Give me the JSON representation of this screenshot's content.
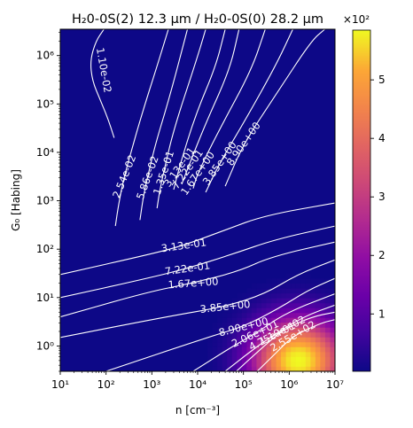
{
  "chart_data": {
    "type": "heatmap",
    "title": "H₂0-0S(2) 12.3 μm / H₂0-0S(0) 28.2 μm",
    "xlabel": "n [cm⁻³]",
    "ylabel": "G₀ [Habing]",
    "x_scale": "log",
    "y_scale": "log",
    "xlim": [
      10,
      10000000
    ],
    "ylim": [
      0.3,
      3500000
    ],
    "x_ticks": [
      {
        "value": 10,
        "label": "10¹"
      },
      {
        "value": 100,
        "label": "10²"
      },
      {
        "value": 1000,
        "label": "10³"
      },
      {
        "value": 10000,
        "label": "10⁴"
      },
      {
        "value": 100000,
        "label": "10⁵"
      },
      {
        "value": 1000000,
        "label": "10⁶"
      },
      {
        "value": 10000000,
        "label": "10⁷"
      }
    ],
    "y_ticks": [
      {
        "value": 1,
        "label": "10⁰"
      },
      {
        "value": 10,
        "label": "10¹"
      },
      {
        "value": 100,
        "label": "10²"
      },
      {
        "value": 1000,
        "label": "10³"
      },
      {
        "value": 10000,
        "label": "10⁴"
      },
      {
        "value": 100000,
        "label": "10⁵"
      },
      {
        "value": 1000000,
        "label": "10⁶"
      }
    ],
    "colormap": "plasma",
    "colorbar": {
      "range": [
        0.02,
        5.85
      ],
      "multiplier_label": "×10²",
      "ticks": [
        {
          "value": 1,
          "label": "1"
        },
        {
          "value": 2,
          "label": "2"
        },
        {
          "value": 3,
          "label": "3"
        },
        {
          "value": 4,
          "label": "4"
        },
        {
          "value": 5,
          "label": "5"
        }
      ]
    },
    "contours": [
      {
        "label": "1.10e-02",
        "label_at": [
          90,
          500000
        ],
        "rotation": 80,
        "path": [
          [
            90,
            3500000
          ],
          [
            60,
            2000000
          ],
          [
            45,
            800000
          ],
          [
            50,
            300000
          ],
          [
            75,
            120000
          ],
          [
            110,
            50000
          ],
          [
            150,
            20000
          ]
        ]
      },
      {
        "label": "2.54e-02",
        "label_at": [
          250,
          3200
        ],
        "rotation": -68,
        "path": [
          [
            160,
            300
          ],
          [
            190,
            900
          ],
          [
            250,
            3200
          ],
          [
            350,
            10000
          ],
          [
            600,
            60000
          ],
          [
            1300,
            600000
          ],
          [
            2300,
            3500000
          ]
        ]
      },
      {
        "label": "5.86e-02",
        "label_at": [
          800,
          3000
        ],
        "rotation": -70,
        "path": [
          [
            550,
            400
          ],
          [
            650,
            1200
          ],
          [
            800,
            3000
          ],
          [
            1200,
            15000
          ],
          [
            2500,
            150000
          ],
          [
            6000,
            3500000
          ]
        ]
      },
      {
        "label": "1.35e-01",
        "label_at": [
          1800,
          3800
        ],
        "rotation": -72,
        "path": [
          [
            1300,
            700
          ],
          [
            1500,
            1700
          ],
          [
            1800,
            3800
          ],
          [
            3000,
            30000
          ],
          [
            9000,
            700000
          ],
          [
            15000,
            3500000
          ]
        ]
      },
      {
        "label": "3.13e-01",
        "label_at": [
          4000,
          5000
        ],
        "rotation": -55,
        "path": [
          [
            3000,
            1700
          ],
          [
            4000,
            5000
          ],
          [
            9000,
            60000
          ],
          [
            25000,
            600000
          ],
          [
            40000,
            3500000
          ]
        ]
      },
      {
        "label": "7.22e-01",
        "label_at": [
          6000,
          4500
        ],
        "rotation": -55,
        "path": [
          [
            4500,
            2200
          ],
          [
            6000,
            4500
          ],
          [
            15000,
            40000
          ],
          [
            50000,
            500000
          ],
          [
            80000,
            3500000
          ]
        ]
      },
      {
        "label": "1.67e+00",
        "label_at": [
          10000,
          3700
        ],
        "rotation": -55,
        "path": [
          [
            8000,
            1800
          ],
          [
            10000,
            3700
          ],
          [
            30000,
            30000
          ],
          [
            150000,
            500000
          ],
          [
            300000,
            3500000
          ]
        ]
      },
      {
        "label": "3.85e+00",
        "label_at": [
          30000,
          6000
        ],
        "rotation": -55,
        "path": [
          [
            15000,
            1500
          ],
          [
            30000,
            6000
          ],
          [
            100000,
            40000
          ],
          [
            500000,
            600000
          ],
          [
            1200000,
            3500000
          ]
        ]
      },
      {
        "label": "8.90e+00",
        "label_at": [
          100000,
          15000
        ],
        "rotation": -55,
        "path": [
          [
            40000,
            2000
          ],
          [
            100000,
            15000
          ],
          [
            500000,
            150000
          ],
          [
            3000000,
            2000000
          ],
          [
            6000000,
            3500000
          ]
        ]
      },
      {
        "label": "3.13e-01",
        "label_at": [
          5000,
          120
        ],
        "rotation": -8,
        "path": [
          [
            10,
            30
          ],
          [
            1000,
            80
          ],
          [
            5000,
            120
          ],
          [
            40000,
            250
          ],
          [
            300000,
            500
          ],
          [
            10000000,
            900
          ]
        ]
      },
      {
        "label": "7.22e-01",
        "label_at": [
          6000,
          40
        ],
        "rotation": -8,
        "path": [
          [
            10,
            10
          ],
          [
            800,
            25
          ],
          [
            6000,
            40
          ],
          [
            60000,
            80
          ],
          [
            500000,
            160
          ],
          [
            10000000,
            300
          ]
        ]
      },
      {
        "label": "1.67e+00",
        "label_at": [
          8000,
          20
        ],
        "rotation": -4,
        "path": [
          [
            10,
            4
          ],
          [
            800,
            13
          ],
          [
            8000,
            20
          ],
          [
            80000,
            35
          ],
          [
            400000,
            70
          ],
          [
            10000000,
            140
          ]
        ]
      },
      {
        "label": "3.85e+00",
        "label_at": [
          40000,
          6.5
        ],
        "rotation": -6,
        "path": [
          [
            10,
            1.5
          ],
          [
            2000,
            4
          ],
          [
            40000,
            6.5
          ],
          [
            300000,
            12
          ],
          [
            1500000,
            30
          ],
          [
            10000000,
            60
          ]
        ]
      },
      {
        "label": "8.90e+00",
        "label_at": [
          100000,
          2.5
        ],
        "rotation": -14,
        "path": [
          [
            100,
            0.3
          ],
          [
            20000,
            1.6
          ],
          [
            100000,
            2.5
          ],
          [
            600000,
            6
          ],
          [
            2500000,
            14
          ],
          [
            10000000,
            25
          ]
        ]
      },
      {
        "label": "2.06e+01",
        "label_at": [
          180000,
          1.8
        ],
        "rotation": -25,
        "path": [
          [
            8000,
            0.3
          ],
          [
            60000,
            1.0
          ],
          [
            180000,
            1.8
          ],
          [
            900000,
            5
          ],
          [
            10000000,
            12
          ]
        ]
      },
      {
        "label": "4.75e+01",
        "label_at": [
          420000,
          1.6
        ],
        "rotation": -27,
        "path": [
          [
            40000,
            0.3
          ],
          [
            150000,
            0.8
          ],
          [
            420000,
            1.6
          ],
          [
            2000000,
            4
          ],
          [
            10000000,
            7
          ]
        ]
      },
      {
        "label": "1.10e+02",
        "label_at": [
          700000,
          2.1
        ],
        "rotation": -28,
        "path": [
          [
            70000,
            0.3
          ],
          [
            250000,
            0.9
          ],
          [
            700000,
            2.1
          ],
          [
            3000000,
            4
          ],
          [
            10000000,
            5
          ]
        ]
      },
      {
        "label": "2.55e+02",
        "label_at": [
          1200000,
          1.6
        ],
        "rotation": -30,
        "path": [
          [
            200000,
            0.3
          ],
          [
            500000,
            0.7
          ],
          [
            1200000,
            1.6
          ],
          [
            5000000,
            3
          ],
          [
            10000000,
            3.5
          ]
        ]
      }
    ]
  }
}
